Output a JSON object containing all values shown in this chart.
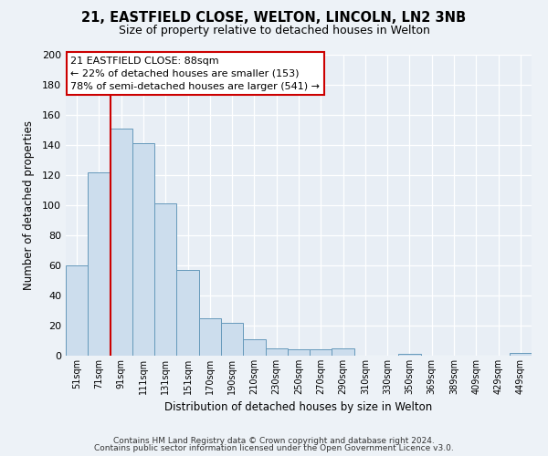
{
  "title1": "21, EASTFIELD CLOSE, WELTON, LINCOLN, LN2 3NB",
  "title2": "Size of property relative to detached houses in Welton",
  "xlabel": "Distribution of detached houses by size in Welton",
  "ylabel": "Number of detached properties",
  "bar_labels": [
    "51sqm",
    "71sqm",
    "91sqm",
    "111sqm",
    "131sqm",
    "151sqm",
    "170sqm",
    "190sqm",
    "210sqm",
    "230sqm",
    "250sqm",
    "270sqm",
    "290sqm",
    "310sqm",
    "330sqm",
    "350sqm",
    "369sqm",
    "389sqm",
    "409sqm",
    "429sqm",
    "449sqm"
  ],
  "bar_values": [
    60,
    122,
    151,
    141,
    101,
    57,
    25,
    22,
    11,
    5,
    4,
    4,
    5,
    0,
    0,
    1,
    0,
    0,
    0,
    0,
    2
  ],
  "bar_color": "#ccdded",
  "bar_edge_color": "#6699bb",
  "red_line_color": "#cc0000",
  "background_color": "#edf2f7",
  "plot_bg_color": "#e8eef5",
  "ylim": [
    0,
    200
  ],
  "yticks": [
    0,
    20,
    40,
    60,
    80,
    100,
    120,
    140,
    160,
    180,
    200
  ],
  "annotation_box_text": "21 EASTFIELD CLOSE: 88sqm\n← 22% of detached houses are smaller (153)\n78% of semi-detached houses are larger (541) →",
  "footer1": "Contains HM Land Registry data © Crown copyright and database right 2024.",
  "footer2": "Contains public sector information licensed under the Open Government Licence v3.0."
}
